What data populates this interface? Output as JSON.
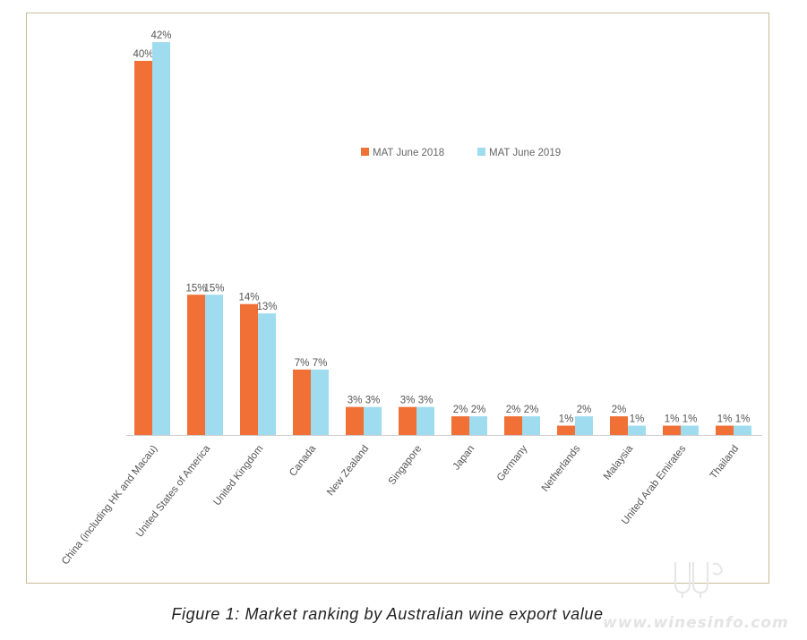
{
  "caption": "Figure 1: Market ranking by Australian wine export value",
  "watermark": "www.winesinfo.com",
  "colors": {
    "series1": "#f07035",
    "series2": "#9fdcef",
    "axis": "#d0d0d0",
    "frame": "#c8bc9a"
  },
  "chart_data": {
    "type": "bar",
    "title": "",
    "xlabel": "",
    "ylabel": "",
    "ylim": [
      0,
      45
    ],
    "grid": false,
    "legend_position": "upper-center",
    "categories": [
      "China (including HK and Macau)",
      "United States of America",
      "United Kingdom",
      "Canada",
      "New Zealand",
      "Singapore",
      "Japan",
      "Germany",
      "Netherlands",
      "Malaysia",
      "United Arab Emirates",
      "Thailand"
    ],
    "series": [
      {
        "name": "MAT June 2018",
        "values": [
          40,
          15,
          14,
          7,
          3,
          3,
          2,
          2,
          1,
          2,
          1,
          1
        ],
        "labels": [
          "40%",
          "15%",
          "14%",
          "7%",
          "3%",
          "3%",
          "2%",
          "2%",
          "1%",
          "2%",
          "1%",
          "1%"
        ]
      },
      {
        "name": "MAT June 2019",
        "values": [
          42,
          15,
          13,
          7,
          3,
          3,
          2,
          2,
          2,
          1,
          1,
          1
        ],
        "labels": [
          "42%",
          "15%",
          "13%",
          "7%",
          "3%",
          "3%",
          "2%",
          "2%",
          "2%",
          "1%",
          "1%",
          "1%"
        ]
      }
    ]
  }
}
